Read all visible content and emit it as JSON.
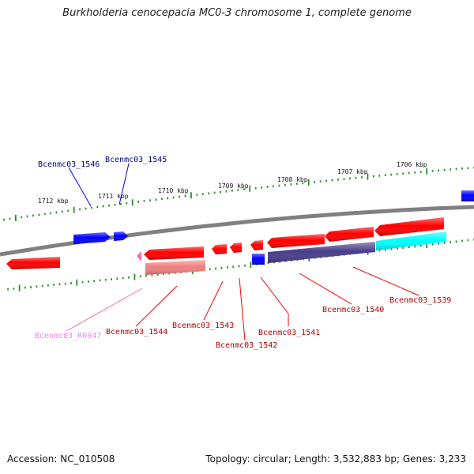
{
  "title": "Burkholderia cenocepacia MC0-3 chromosome 1, complete genome",
  "footer": {
    "accession": "Accession: NC_010508",
    "topology": "Topology: circular; Length: 3,532,883 bp; Genes: 3,233"
  },
  "colors": {
    "backbone": "#808080",
    "gene_forward": "#0000ff",
    "gene_reverse": "#ff0000",
    "gene_operon": "#483d8b",
    "gene_cyan": "#00ffff",
    "gene_pseudo": "#f08080",
    "rna": "#ff69b4",
    "tick": "#2e8b2e",
    "label_forward": "#00008b",
    "label_reverse": "#b00000",
    "label_rna": "#ee82ee"
  },
  "scale_labels": [
    "1712 kbp",
    "1711 kbp",
    "1710 kbp",
    "1709 kbp",
    "1708 kbp",
    "1707 kbp",
    "1706 kbp"
  ],
  "gene_labels": {
    "g1546": "Bcenmc03_1546",
    "g1545": "Bcenmc03_1545",
    "r0047": "Bcenmc03_R0047",
    "g1544": "Bcenmc03_1544",
    "g1543": "Bcenmc03_1543",
    "g1542": "Bcenmc03_1542",
    "g1541": "Bcenmc03_1541",
    "g1540": "Bcenmc03_1540",
    "g1539": "Bcenmc03_1539"
  }
}
